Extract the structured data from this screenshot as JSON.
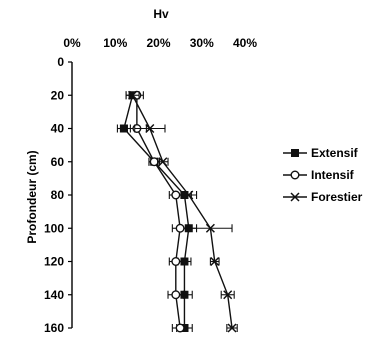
{
  "chart_data": {
    "type": "line",
    "orientation": "depth-profile",
    "xlabel": "Hv",
    "ylabel": "Profondeur (cm)",
    "x_axis_position": "top",
    "x_ticks": [
      "0%",
      "10%",
      "20%",
      "30%",
      "40%"
    ],
    "y_ticks": [
      "0",
      "20",
      "40",
      "60",
      "80",
      "100",
      "120",
      "140",
      "160"
    ],
    "xlim": [
      0,
      40
    ],
    "ylim": [
      0,
      160
    ],
    "y_inverted": true,
    "grid": false,
    "legend_position": "right",
    "depths": [
      20,
      40,
      60,
      80,
      100,
      120,
      140,
      160
    ],
    "series": [
      {
        "name": "Extensif",
        "marker": "filled-square",
        "values": [
          14,
          12,
          19,
          26,
          27,
          26,
          26,
          26
        ],
        "error": [
          1.5,
          1.5,
          1.2,
          1.6,
          1.8,
          1.5,
          1.8,
          1.8
        ]
      },
      {
        "name": "Intensif",
        "marker": "open-circle",
        "values": [
          15,
          15,
          19,
          24,
          25,
          24,
          24,
          25
        ],
        "error": [
          1.5,
          2.2,
          1.2,
          1.5,
          1.8,
          1.5,
          1.8,
          1.8
        ]
      },
      {
        "name": "Forestier",
        "marker": "x",
        "values": [
          14,
          18,
          21,
          27,
          32,
          33,
          36,
          37
        ],
        "error": [
          1.5,
          3.5,
          1.2,
          1.8,
          5.0,
          1.0,
          1.5,
          1.2
        ]
      }
    ]
  }
}
